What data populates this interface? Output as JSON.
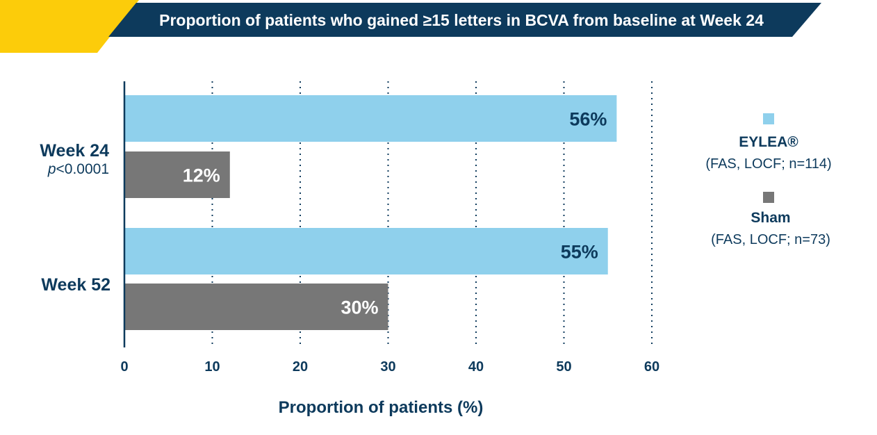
{
  "colors": {
    "navy": "#0d3a5c",
    "yellow": "#fccc0a",
    "eylea": "#8fd0ec",
    "sham": "#777777",
    "grid": "#0d3a5c"
  },
  "chart_data": {
    "type": "bar",
    "orientation": "horizontal",
    "title": "Proportion of patients who gained ≥15 letters in BCVA from baseline at Week 24",
    "xlabel": "Proportion of patients (%)",
    "ylabel": "",
    "xlim": [
      0,
      60
    ],
    "xticks": [
      0,
      10,
      20,
      30,
      40,
      50,
      60
    ],
    "grid": "vertical-dotted",
    "legend_position": "right",
    "categories": [
      {
        "label": "Week 24",
        "pvalue_prefix": "p",
        "pvalue_rest": "<0.0001"
      },
      {
        "label": "Week 52",
        "pvalue_prefix": "",
        "pvalue_rest": ""
      }
    ],
    "series": [
      {
        "name": "EYLEA®",
        "subtitle": "(FAS, LOCF; n=114)",
        "values": [
          56,
          55
        ],
        "labels": [
          "56%",
          "55%"
        ],
        "color": "#8fd0ec",
        "label_color": "#0d3a5c"
      },
      {
        "name": "Sham",
        "subtitle": "(FAS, LOCF; n=73)",
        "values": [
          12,
          30
        ],
        "labels": [
          "12%",
          "30%"
        ],
        "color": "#777777",
        "label_color": "#ffffff"
      }
    ]
  }
}
